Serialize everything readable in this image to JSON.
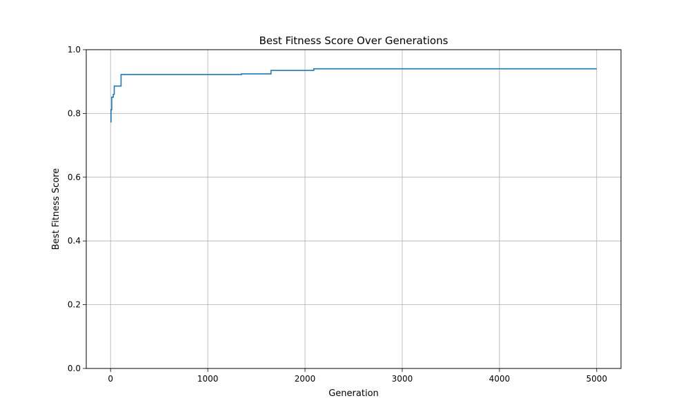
{
  "chart_data": {
    "type": "line",
    "title": "Best Fitness Score Over Generations",
    "xlabel": "Generation",
    "ylabel": "Best Fitness Score",
    "xlim": [
      -250,
      5250
    ],
    "ylim": [
      0,
      1
    ],
    "xticks": [
      0,
      1000,
      2000,
      3000,
      4000,
      5000
    ],
    "yticks": [
      0.0,
      0.2,
      0.4,
      0.6,
      0.8,
      1.0
    ],
    "xtick_labels": [
      "0",
      "1000",
      "2000",
      "3000",
      "4000",
      "5000"
    ],
    "ytick_labels": [
      "0.0",
      "0.2",
      "0.4",
      "0.6",
      "0.8",
      "1.0"
    ],
    "grid": true,
    "line_color": "#1f77b4",
    "series": [
      {
        "step": "post",
        "x": [
          0,
          5,
          12,
          28,
          38,
          108,
          1345,
          1650,
          2090,
          5000
        ],
        "y": [
          0.773,
          0.812,
          0.851,
          0.86,
          0.886,
          0.922,
          0.924,
          0.935,
          0.94,
          0.94
        ]
      }
    ]
  }
}
